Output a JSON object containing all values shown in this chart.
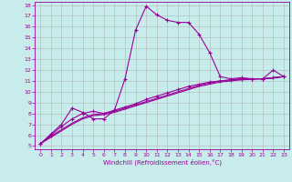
{
  "xlabel": "Windchill (Refroidissement éolien,°C)",
  "bg_color": "#c8ecec",
  "line_color": "#990099",
  "grid_color": "#aaaaaa",
  "xlim": [
    -0.5,
    23.5
  ],
  "ylim": [
    4.7,
    18.3
  ],
  "xticks": [
    0,
    1,
    2,
    3,
    4,
    5,
    6,
    7,
    8,
    9,
    10,
    11,
    12,
    13,
    14,
    15,
    16,
    17,
    18,
    19,
    20,
    21,
    22,
    23
  ],
  "yticks": [
    5,
    6,
    7,
    8,
    9,
    10,
    11,
    12,
    13,
    14,
    15,
    16,
    17,
    18
  ],
  "line1_x": [
    0,
    1,
    2,
    3,
    4,
    5,
    6,
    7,
    8,
    9,
    10,
    11,
    12,
    13,
    14,
    15,
    16,
    17,
    18,
    19,
    20,
    21,
    22,
    23
  ],
  "line1_y": [
    5.2,
    6.1,
    7.0,
    8.5,
    8.1,
    7.5,
    7.5,
    8.3,
    11.2,
    15.7,
    17.9,
    17.1,
    16.6,
    16.4,
    16.4,
    15.3,
    13.6,
    11.4,
    11.2,
    11.3,
    11.2,
    11.2,
    12.0,
    11.4
  ],
  "line2_x": [
    0,
    1,
    2,
    3,
    4,
    5,
    6,
    7,
    8,
    9,
    10,
    11,
    12,
    13,
    14,
    15,
    16,
    17,
    18,
    19,
    20,
    21,
    22,
    23
  ],
  "line2_y": [
    5.2,
    6.0,
    6.8,
    7.5,
    8.0,
    8.2,
    8.0,
    8.3,
    8.6,
    8.9,
    9.3,
    9.6,
    9.9,
    10.2,
    10.5,
    10.7,
    10.9,
    11.0,
    11.1,
    11.2,
    11.2,
    11.2,
    11.3,
    11.4
  ],
  "line3_x": [
    0,
    1,
    2,
    3,
    4,
    5,
    6,
    7,
    8,
    9,
    10,
    11,
    12,
    13,
    14,
    15,
    16,
    17,
    18,
    19,
    20,
    21,
    22,
    23
  ],
  "line3_y": [
    5.2,
    5.9,
    6.5,
    7.1,
    7.6,
    7.9,
    8.0,
    8.2,
    8.5,
    8.8,
    9.1,
    9.4,
    9.7,
    10.0,
    10.3,
    10.6,
    10.8,
    11.0,
    11.1,
    11.15,
    11.2,
    11.2,
    11.3,
    11.4
  ],
  "line4_x": [
    0,
    1,
    2,
    3,
    4,
    5,
    6,
    7,
    8,
    9,
    10,
    11,
    12,
    13,
    14,
    15,
    16,
    17,
    18,
    19,
    20,
    21,
    22,
    23
  ],
  "line4_y": [
    5.2,
    5.8,
    6.4,
    7.0,
    7.5,
    7.8,
    7.9,
    8.1,
    8.4,
    8.7,
    9.0,
    9.3,
    9.6,
    9.9,
    10.2,
    10.5,
    10.7,
    10.9,
    11.0,
    11.1,
    11.15,
    11.2,
    11.25,
    11.4
  ]
}
